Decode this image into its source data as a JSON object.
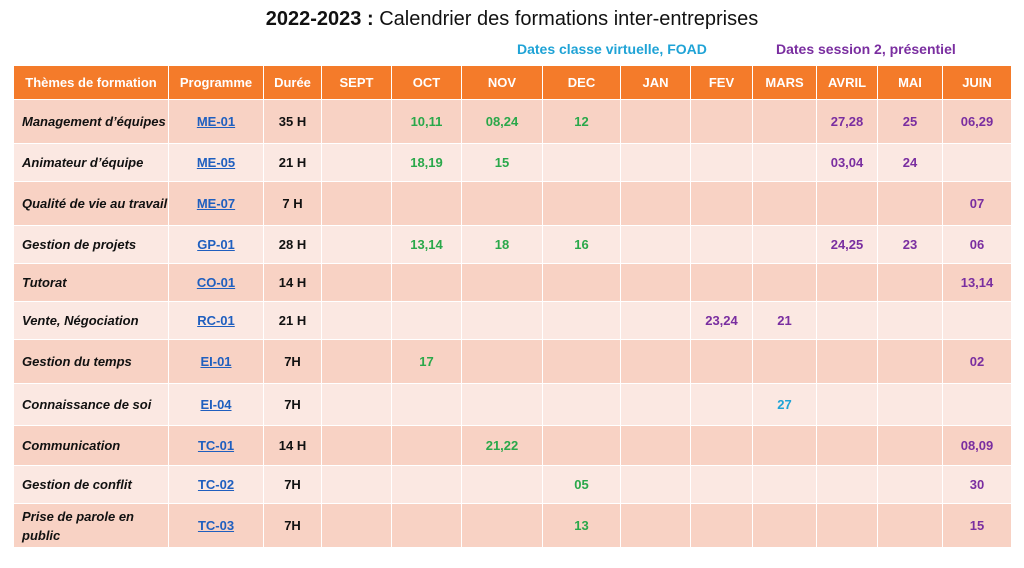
{
  "header": {
    "year": "2022-2023 :",
    "title": "Calendrier des formations inter-entreprises",
    "legend_virtual": "Dates classe virtuelle, FOAD",
    "legend_session": "Dates session 2, présentiel"
  },
  "colors": {
    "header_bg": "#f47b2a",
    "row_dark": "#f8d2c4",
    "row_light": "#fbe8e2",
    "green": "#2aa84a",
    "blue": "#1fa3d6",
    "purple": "#7a2ea0",
    "link": "#1f5fbf"
  },
  "columns": [
    "Thèmes de formation",
    "Programme",
    "Durée",
    "SEPT",
    "OCT",
    "NOV",
    "DEC",
    "JAN",
    "FEV",
    "MARS",
    "AVRIL",
    "MAI",
    "JUIN"
  ],
  "rows": [
    {
      "theme": "Management d’équipes",
      "programme": "ME-01",
      "duree": "35 H",
      "oct": "10,11",
      "nov": "08,24",
      "dec": "12",
      "avril": "27,28",
      "mai": "25",
      "juin": "06,29"
    },
    {
      "theme": "Animateur d’équipe",
      "programme": "ME-05",
      "duree": "21 H",
      "oct": "18,19",
      "nov": "15",
      "avril": "03,04",
      "mai": "24"
    },
    {
      "theme": "Qualité de vie au travail",
      "programme": "ME-07",
      "duree": "7 H",
      "juin": "07"
    },
    {
      "theme": "Gestion de projets",
      "programme": "GP-01",
      "duree": "28 H",
      "oct": "13,14",
      "nov": "18",
      "dec": "16",
      "avril": "24,25",
      "mai": "23",
      "juin": "06"
    },
    {
      "theme": "Tutorat",
      "programme": "CO-01",
      "duree": "14 H",
      "juin": "13,14"
    },
    {
      "theme": "Vente, Négociation",
      "programme": "RC-01",
      "duree": "21 H",
      "fev": "23,24",
      "mars": "21"
    },
    {
      "theme": "Gestion du temps",
      "programme": "EI-01",
      "duree": "7H",
      "oct": "17",
      "juin": "02"
    },
    {
      "theme": "Connaissance de soi",
      "programme": "EI-04",
      "duree": "7H",
      "mars": "27"
    },
    {
      "theme": "Communication",
      "programme": "TC-01",
      "duree": "14 H",
      "nov": "21,22",
      "juin": "08,09"
    },
    {
      "theme": "Gestion de conflit",
      "programme": "TC-02",
      "duree": "7H",
      "dec": "05",
      "juin": "30"
    },
    {
      "theme": "Prise de parole en public",
      "programme": "TC-03",
      "duree": "7H",
      "dec": "13",
      "juin": "15"
    }
  ]
}
